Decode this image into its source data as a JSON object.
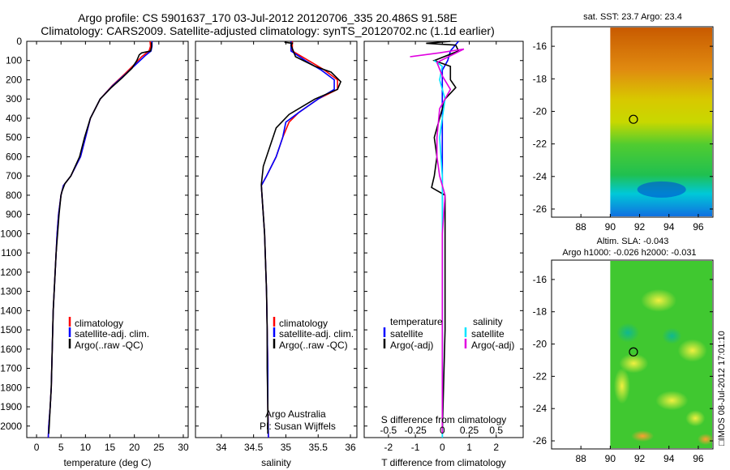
{
  "header": {
    "line1": "Argo profile: CS 5901637_170 03-Jul-2012 20120706_335 20.486S 91.58E",
    "line2": "Climatology: CARS2009. Satellite-adjusted climatology: synTS_20120702.nc (1.1d earlier)"
  },
  "colors": {
    "clim": "#ff0000",
    "sat": "#0000ff",
    "argo": "#000000",
    "sat_s": "#00e5ff",
    "argo_s": "#e000e0"
  },
  "chart_data": [
    {
      "id": "temperature",
      "type": "line",
      "xlabel": "temperature (deg C)",
      "ylabel": "",
      "xlim": [
        -2,
        31
      ],
      "ylim": [
        2060,
        0
      ],
      "xticks": [
        "0",
        "5",
        "10",
        "15",
        "20",
        "25",
        "30"
      ],
      "yticks": [
        "0",
        "100",
        "200",
        "300",
        "400",
        "500",
        "600",
        "700",
        "800",
        "900",
        "1000",
        "1100",
        "1200",
        "1300",
        "1400",
        "1500",
        "1600",
        "1700",
        "1800",
        "1900",
        "2000"
      ],
      "legend": [
        "climatology",
        "satellite-adj. clim.",
        "Argo(..raw -QC)"
      ],
      "series": [
        {
          "name": "climatology",
          "color": "clim",
          "points": [
            [
              23.2,
              0
            ],
            [
              23.3,
              25
            ],
            [
              23,
              50
            ],
            [
              21.5,
              80
            ],
            [
              20,
              120
            ],
            [
              18,
              170
            ],
            [
              15.5,
              230
            ],
            [
              13,
              300
            ],
            [
              11,
              400
            ],
            [
              10,
              500
            ],
            [
              9,
              600
            ],
            [
              7,
              700
            ],
            [
              5.5,
              750
            ],
            [
              5,
              800
            ],
            [
              4.5,
              900
            ],
            [
              4.2,
              1000
            ],
            [
              4,
              1100
            ],
            [
              3.8,
              1200
            ],
            [
              3.6,
              1300
            ],
            [
              3.4,
              1400
            ],
            [
              3.3,
              1500
            ],
            [
              3.2,
              1600
            ],
            [
              3.1,
              1700
            ],
            [
              3,
              1800
            ],
            [
              2.8,
              1900
            ],
            [
              2.5,
              2000
            ],
            [
              2.4,
              2060
            ]
          ]
        },
        {
          "name": "satellite-adj. clim.",
          "color": "sat",
          "points": [
            [
              23.6,
              0
            ],
            [
              23.6,
              25
            ],
            [
              23.4,
              50
            ],
            [
              22.2,
              75
            ],
            [
              20.3,
              120
            ],
            [
              18.2,
              170
            ],
            [
              15.6,
              230
            ],
            [
              13,
              300
            ],
            [
              11,
              400
            ],
            [
              10,
              500
            ],
            [
              9,
              600
            ],
            [
              7,
              700
            ],
            [
              5.5,
              750
            ],
            [
              5,
              800
            ],
            [
              4.5,
              900
            ],
            [
              4.2,
              1000
            ],
            [
              4,
              1100
            ],
            [
              3.8,
              1200
            ],
            [
              3.6,
              1300
            ],
            [
              3.4,
              1400
            ],
            [
              3.3,
              1500
            ],
            [
              3.2,
              1600
            ],
            [
              3.1,
              1700
            ],
            [
              3,
              1800
            ],
            [
              2.8,
              1900
            ],
            [
              2.5,
              2000
            ],
            [
              2.4,
              2060
            ]
          ]
        },
        {
          "name": "Argo(..raw -QC)",
          "color": "argo",
          "points": [
            [
              23.5,
              5
            ],
            [
              23.5,
              30
            ],
            [
              23.3,
              50
            ],
            [
              21.5,
              60
            ],
            [
              21,
              70
            ],
            [
              20.5,
              100
            ],
            [
              19.5,
              140
            ],
            [
              17.5,
              190
            ],
            [
              15.3,
              240
            ],
            [
              13,
              300
            ],
            [
              11,
              400
            ],
            [
              9.8,
              500
            ],
            [
              8.8,
              600
            ],
            [
              7,
              700
            ],
            [
              5.8,
              740
            ],
            [
              5.2,
              780
            ],
            [
              5,
              800
            ],
            [
              4.6,
              900
            ],
            [
              4.3,
              1000
            ],
            [
              4,
              1100
            ],
            [
              3.8,
              1200
            ],
            [
              3.6,
              1300
            ],
            [
              3.4,
              1400
            ],
            [
              3.3,
              1500
            ],
            [
              3.2,
              1600
            ],
            [
              3.1,
              1700
            ],
            [
              3,
              1800
            ],
            [
              2.8,
              1900
            ],
            [
              2.6,
              2000
            ],
            [
              2.5,
              2040
            ]
          ]
        }
      ]
    },
    {
      "id": "salinity",
      "type": "line",
      "xlabel": "salinity",
      "xlim": [
        33.6,
        36.1
      ],
      "ylim": [
        2060,
        0
      ],
      "xticks": [
        "34",
        "34.5",
        "35",
        "35.5",
        "36"
      ],
      "legend": [
        "climatology",
        "satellite-adj. clim.",
        "Argo(..raw -QC)"
      ],
      "annotations": [
        "Argo Australia",
        "PI: Susan Wijffels"
      ],
      "series": [
        {
          "name": "climatology",
          "color": "clim",
          "points": [
            [
              35.1,
              0
            ],
            [
              35.1,
              50
            ],
            [
              35.35,
              100
            ],
            [
              35.6,
              150
            ],
            [
              35.8,
              200
            ],
            [
              35.8,
              250
            ],
            [
              35.5,
              300
            ],
            [
              35.2,
              370
            ],
            [
              35.05,
              420
            ],
            [
              34.95,
              500
            ],
            [
              34.85,
              600
            ],
            [
              34.7,
              700
            ],
            [
              34.62,
              750
            ],
            [
              34.63,
              800
            ],
            [
              34.65,
              900
            ],
            [
              34.67,
              1000
            ],
            [
              34.68,
              1100
            ],
            [
              34.69,
              1200
            ],
            [
              34.7,
              1300
            ],
            [
              34.71,
              1500
            ],
            [
              34.72,
              1700
            ],
            [
              34.72,
              1900
            ],
            [
              34.73,
              2060
            ]
          ]
        },
        {
          "name": "satellite-adj. clim.",
          "color": "sat",
          "points": [
            [
              35.08,
              0
            ],
            [
              35.08,
              50
            ],
            [
              35.3,
              100
            ],
            [
              35.55,
              150
            ],
            [
              35.75,
              200
            ],
            [
              35.75,
              250
            ],
            [
              35.5,
              300
            ],
            [
              35.2,
              370
            ],
            [
              35,
              420
            ],
            [
              34.95,
              500
            ],
            [
              34.85,
              600
            ],
            [
              34.7,
              700
            ],
            [
              34.62,
              750
            ],
            [
              34.63,
              800
            ],
            [
              34.65,
              900
            ],
            [
              34.67,
              1000
            ],
            [
              34.68,
              1100
            ],
            [
              34.69,
              1200
            ],
            [
              34.7,
              1300
            ],
            [
              34.71,
              1500
            ],
            [
              34.72,
              1700
            ],
            [
              34.72,
              1900
            ],
            [
              34.73,
              2060
            ]
          ]
        },
        {
          "name": "Argo(..raw -QC)",
          "color": "argo",
          "points": [
            [
              34.98,
              5
            ],
            [
              35.1,
              10
            ],
            [
              35.08,
              20
            ],
            [
              35.15,
              80
            ],
            [
              35.45,
              130
            ],
            [
              35.7,
              160
            ],
            [
              35.85,
              210
            ],
            [
              35.8,
              250
            ],
            [
              35.45,
              300
            ],
            [
              35.05,
              380
            ],
            [
              34.85,
              450
            ],
            [
              34.75,
              550
            ],
            [
              34.65,
              650
            ],
            [
              34.62,
              745
            ],
            [
              34.63,
              800
            ],
            [
              34.65,
              900
            ],
            [
              34.67,
              1000
            ],
            [
              34.68,
              1100
            ],
            [
              34.69,
              1200
            ],
            [
              34.7,
              1300
            ],
            [
              34.71,
              1500
            ],
            [
              34.71,
              1700
            ],
            [
              34.72,
              1900
            ],
            [
              34.72,
              2040
            ]
          ]
        }
      ]
    },
    {
      "id": "difference",
      "type": "line",
      "xlabel": "T difference from climatology",
      "top_label": "S difference from climatology",
      "xlim": [
        -2.9,
        3
      ],
      "ylim": [
        2060,
        0
      ],
      "xticks": [
        "-2",
        "-1",
        "0",
        "1",
        "2"
      ],
      "sticks": [
        "-0.5",
        "-0.25",
        "0",
        "0.25",
        "0.5"
      ],
      "legend_t": [
        "temperature",
        "satellite",
        "Argo(-adj)"
      ],
      "legend_s": [
        "salinity",
        "satellite",
        "Argo(-adj)"
      ],
      "series": [
        {
          "name": "T satellite",
          "color": "sat",
          "points": [
            [
              0.6,
              0
            ],
            [
              0.3,
              50
            ],
            [
              0.2,
              100
            ],
            [
              0,
              150
            ],
            [
              0,
              250
            ],
            [
              0,
              400
            ],
            [
              0,
              600
            ],
            [
              0,
              800
            ],
            [
              0,
              1200
            ],
            [
              0,
              2060
            ]
          ]
        },
        {
          "name": "T Argo(-adj)",
          "color": "argo",
          "points": [
            [
              0.3,
              0
            ],
            [
              -0.6,
              10
            ],
            [
              0.5,
              20
            ],
            [
              0.6,
              50
            ],
            [
              -0.3,
              100
            ],
            [
              0.3,
              130
            ],
            [
              0.3,
              200
            ],
            [
              0.5,
              240
            ],
            [
              0.1,
              300
            ],
            [
              -0.3,
              500
            ],
            [
              -0.2,
              600
            ],
            [
              -0.3,
              700
            ],
            [
              -0.4,
              760
            ],
            [
              0.1,
              800
            ],
            [
              0.1,
              1000
            ],
            [
              0.1,
              1500
            ],
            [
              0,
              2040
            ]
          ]
        },
        {
          "name": "S satellite",
          "color": "sat_s",
          "points": [
            [
              -0.3,
              100
            ],
            [
              0,
              130
            ],
            [
              -0.1,
              200
            ],
            [
              0.1,
              300
            ],
            [
              0,
              400
            ],
            [
              -0.1,
              500
            ],
            [
              0,
              700
            ],
            [
              0,
              900
            ],
            [
              0,
              2060
            ]
          ]
        },
        {
          "name": "S Argo(-adj)",
          "color": "argo_s",
          "points": [
            [
              -1.2,
              80
            ],
            [
              -0.1,
              60
            ],
            [
              0.8,
              40
            ],
            [
              -0.2,
              110
            ],
            [
              0,
              180
            ],
            [
              0.3,
              250
            ],
            [
              -0.1,
              350
            ],
            [
              -0.2,
              500
            ],
            [
              -0.2,
              600
            ],
            [
              -0.1,
              700
            ],
            [
              0.1,
              800
            ],
            [
              0,
              1000
            ],
            [
              0,
              2040
            ]
          ]
        }
      ]
    },
    {
      "id": "sst_map",
      "type": "heatmap",
      "title": "sat. SST: 23.7 Argo: 23.4",
      "xticks": [
        "88",
        "90",
        "92",
        "94",
        "96"
      ],
      "yticks": [
        "-16",
        "-18",
        "-20",
        "-22",
        "-24",
        "-26"
      ],
      "xlim": [
        86,
        97
      ],
      "ylim": [
        -26.5,
        -14.8
      ],
      "marker": [
        91.58,
        -20.486
      ]
    },
    {
      "id": "sla_map",
      "type": "heatmap",
      "title": "Altim. SLA: -0.043",
      "subtitle": "Argo h1000: -0.026 h2000: -0.031",
      "xticks": [
        "88",
        "90",
        "92",
        "94",
        "96"
      ],
      "yticks": [
        "-16",
        "-18",
        "-20",
        "-22",
        "-24",
        "-26"
      ],
      "xlim": [
        86,
        97
      ],
      "ylim": [
        -26.5,
        -14.8
      ],
      "marker": [
        91.58,
        -20.486
      ]
    }
  ],
  "footer": {
    "stamp": "□IMOS 08-Jul-2012 17:01:10"
  }
}
